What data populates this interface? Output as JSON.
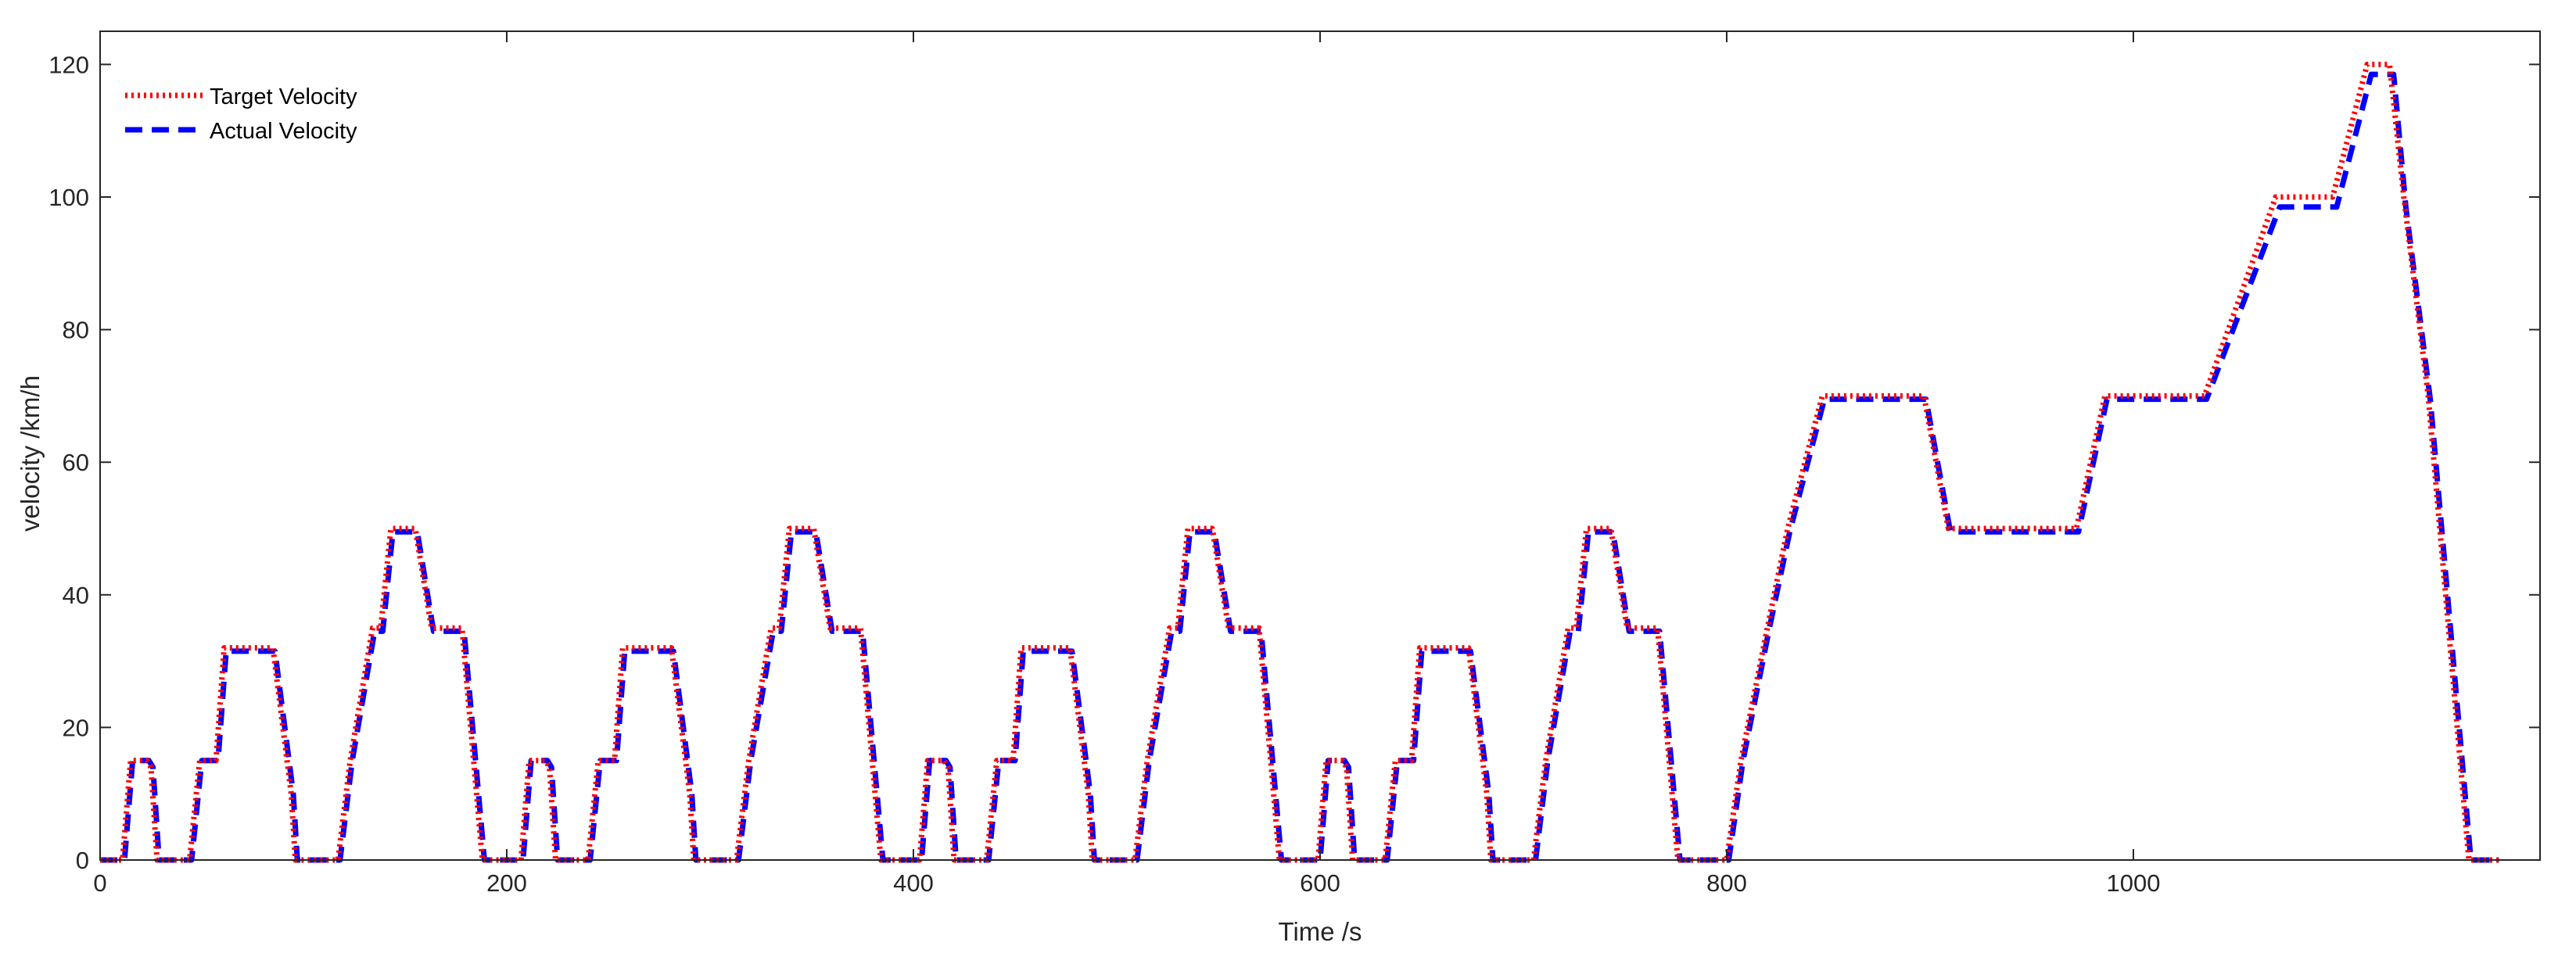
{
  "chart_data": {
    "type": "line",
    "xlabel": "Time /s",
    "ylabel": "velocity /km/h",
    "xlim": [
      0,
      1200
    ],
    "ylim": [
      0,
      125
    ],
    "xticks": [
      0,
      200,
      400,
      600,
      800,
      1000
    ],
    "yticks": [
      0,
      20,
      40,
      60,
      80,
      100,
      120
    ],
    "grid": false,
    "legend_position": "top-left",
    "colors": {
      "target": "#ff0000",
      "actual": "#0000ff"
    },
    "series": [
      {
        "name": "Target Velocity",
        "style": "dotted",
        "color": "#ff0000",
        "x": [
          0,
          11,
          15,
          23,
          25,
          28,
          44,
          49,
          57,
          61,
          69,
          81,
          85,
          94,
          96,
          117,
          123,
          134,
          138,
          143,
          155,
          163,
          176,
          178,
          188,
          201,
          207,
          211,
          219,
          221,
          224,
          240,
          245,
          253,
          257,
          265,
          277,
          281,
          290,
          292,
          313,
          319,
          330,
          334,
          339,
          351,
          359,
          372,
          374,
          384,
          397,
          403,
          407,
          415,
          417,
          420,
          436,
          441,
          449,
          453,
          461,
          473,
          477,
          486,
          488,
          509,
          515,
          526,
          530,
          535,
          547,
          555,
          568,
          570,
          580,
          593,
          599,
          603,
          611,
          613,
          616,
          632,
          637,
          645,
          649,
          657,
          669,
          673,
          682,
          684,
          705,
          711,
          722,
          726,
          731,
          743,
          751,
          764,
          766,
          776,
          789,
          800,
          807,
          820,
          830,
          847,
          897,
          909,
          972,
          986,
          1035,
          1070,
          1098,
          1115,
          1126,
          1133,
          1145,
          1165,
          1180
        ],
        "y": [
          0,
          0,
          15,
          15,
          14,
          0,
          0,
          15,
          15,
          32,
          32,
          32,
          32,
          10,
          0,
          0,
          15,
          35,
          35,
          50,
          50,
          35,
          35,
          35,
          0,
          0,
          0,
          15,
          15,
          14,
          0,
          0,
          15,
          15,
          32,
          32,
          32,
          32,
          10,
          0,
          0,
          15,
          35,
          35,
          50,
          50,
          35,
          35,
          35,
          0,
          0,
          0,
          15,
          15,
          14,
          0,
          0,
          15,
          15,
          32,
          32,
          32,
          32,
          10,
          0,
          0,
          15,
          35,
          35,
          50,
          50,
          35,
          35,
          35,
          0,
          0,
          0,
          15,
          15,
          14,
          0,
          0,
          15,
          15,
          32,
          32,
          32,
          32,
          10,
          0,
          0,
          15,
          35,
          35,
          50,
          50,
          35,
          35,
          35,
          0,
          0,
          0,
          15,
          35,
          50,
          70,
          70,
          50,
          50,
          70,
          70,
          100,
          100,
          120,
          120,
          100,
          70,
          0,
          0
        ]
      },
      {
        "name": "Actual Velocity",
        "style": "dashed",
        "color": "#0000ff",
        "x": [
          0,
          12,
          16,
          24,
          26,
          29,
          45,
          50,
          58,
          62,
          70,
          82,
          86,
          95,
          97,
          118,
          124,
          135,
          139,
          144,
          156,
          164,
          177,
          179,
          189,
          202,
          208,
          212,
          220,
          222,
          225,
          241,
          246,
          254,
          258,
          266,
          278,
          282,
          291,
          293,
          314,
          320,
          331,
          335,
          340,
          352,
          360,
          373,
          375,
          385,
          398,
          404,
          408,
          416,
          418,
          421,
          437,
          442,
          450,
          454,
          462,
          474,
          478,
          487,
          489,
          510,
          516,
          527,
          531,
          536,
          548,
          556,
          569,
          571,
          581,
          594,
          600,
          604,
          612,
          614,
          617,
          633,
          638,
          646,
          650,
          658,
          670,
          674,
          683,
          685,
          706,
          712,
          723,
          727,
          732,
          744,
          752,
          765,
          767,
          777,
          790,
          801,
          808,
          821,
          831,
          848,
          898,
          910,
          973,
          987,
          1036,
          1072,
          1100,
          1117,
          1128,
          1134,
          1146,
          1166,
          1180
        ],
        "y": [
          0,
          0,
          15,
          15,
          14,
          0,
          0,
          15,
          15,
          31.5,
          31.5,
          31.5,
          31.5,
          10,
          0,
          0,
          15,
          34.5,
          34.5,
          49.5,
          49.5,
          34.5,
          34.5,
          34.5,
          0,
          0,
          0,
          15,
          15,
          14,
          0,
          0,
          15,
          15,
          31.5,
          31.5,
          31.5,
          31.5,
          10,
          0,
          0,
          15,
          34.5,
          34.5,
          49.5,
          49.5,
          34.5,
          34.5,
          34.5,
          0,
          0,
          0,
          15,
          15,
          14,
          0,
          0,
          15,
          15,
          31.5,
          31.5,
          31.5,
          31.5,
          10,
          0,
          0,
          15,
          34.5,
          34.5,
          49.5,
          49.5,
          34.5,
          34.5,
          34.5,
          0,
          0,
          0,
          15,
          15,
          14,
          0,
          0,
          15,
          15,
          31.5,
          31.5,
          31.5,
          31.5,
          10,
          0,
          0,
          15,
          34.5,
          34.5,
          49.5,
          49.5,
          34.5,
          34.5,
          34.5,
          0,
          0,
          0,
          15,
          35,
          49.5,
          69.5,
          69.5,
          49.5,
          49.5,
          69.5,
          69.5,
          98.5,
          98.5,
          118.5,
          118.5,
          98.5,
          69.5,
          0,
          0
        ]
      }
    ]
  }
}
